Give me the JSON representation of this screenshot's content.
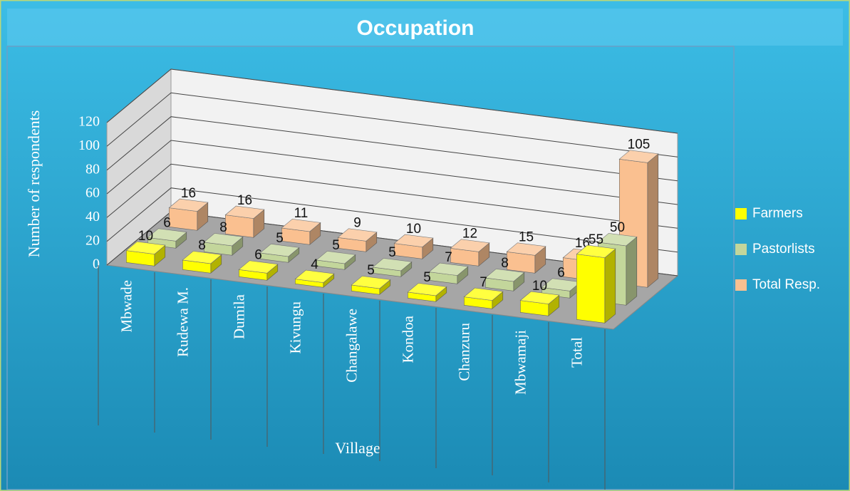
{
  "chart_data": {
    "type": "bar3d",
    "title": "Occupation",
    "y_label": "Number of respondents",
    "x_label": "Village",
    "categories": [
      "Mbwade",
      "Rudewa M.",
      "Dumila",
      "Kivungu",
      "Changalawe",
      "Kondoa",
      "Chanzuru",
      "Mbwamaji",
      "Total"
    ],
    "series": [
      {
        "name": "Farmers",
        "color": "#ffff00",
        "values": [
          10,
          8,
          6,
          4,
          5,
          5,
          7,
          10,
          55
        ]
      },
      {
        "name": "Pastorlists",
        "color": "#c3d69b",
        "values": [
          6,
          8,
          5,
          5,
          5,
          7,
          8,
          6,
          50
        ]
      },
      {
        "name": "Total Resp.",
        "color": "#fac090",
        "values": [
          16,
          16,
          11,
          9,
          10,
          12,
          15,
          16,
          105
        ]
      }
    ],
    "ylim": [
      0,
      120
    ],
    "yticks": [
      0,
      20,
      40,
      60,
      80,
      100,
      120
    ],
    "grid": true,
    "legend": "right"
  }
}
